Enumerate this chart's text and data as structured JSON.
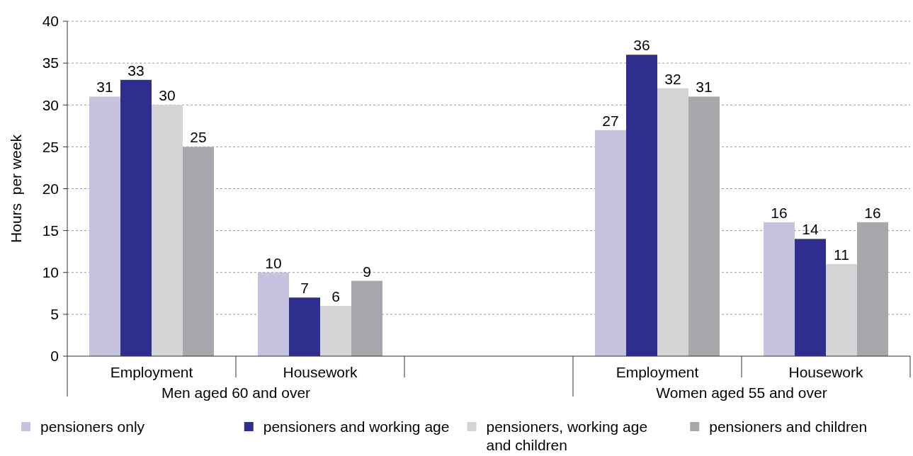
{
  "chart_data": {
    "type": "bar",
    "ylabel": "Hours  per week",
    "categories": [
      "Employment",
      "Housework",
      null,
      "Employment",
      "Housework"
    ],
    "series": [
      {
        "name": "pensioners only",
        "color": "#c5c3e0",
        "values": [
          31,
          10,
          null,
          27,
          16
        ]
      },
      {
        "name": "pensioners and working age",
        "color": "#2e2e8f",
        "values": [
          33,
          7,
          null,
          36,
          14
        ]
      },
      {
        "name": "pensioners, working age and children",
        "color": "#d3d4d6",
        "values": [
          30,
          6,
          null,
          32,
          11
        ]
      },
      {
        "name": "pensioners and children",
        "color": "#a7a8ab",
        "values": [
          25,
          9,
          null,
          31,
          16
        ]
      }
    ],
    "ylim": [
      0,
      40
    ],
    "yticks": [
      0,
      5,
      10,
      15,
      20,
      25,
      30,
      35,
      40
    ],
    "grid": "y",
    "legend": "bottom",
    "data_labels": true,
    "annotations": [
      "Men aged 60 and over",
      "Women aged 55 and over"
    ]
  }
}
